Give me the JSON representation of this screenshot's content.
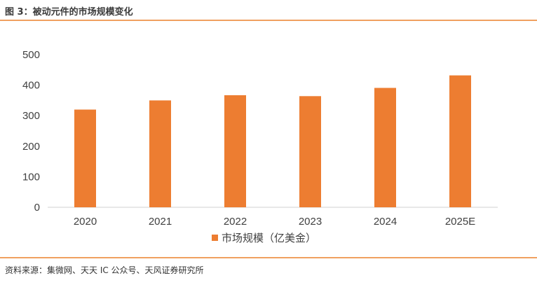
{
  "figure_title": "图 3：被动元件的市场规模变化",
  "source_note": "资料来源：集微网、天天 IC 公众号、天风证券研究所",
  "colors": {
    "accent": "#ED7D31",
    "rule": "#F0A060",
    "axis": "#D9D9D9",
    "text": "#404040"
  },
  "chart_data": {
    "type": "bar",
    "title": "",
    "xlabel": "",
    "ylabel": "",
    "categories": [
      "2020",
      "2021",
      "2022",
      "2023",
      "2024",
      "2025E"
    ],
    "series": [
      {
        "name": "市场规模（亿美金）",
        "values": [
          320,
          350,
          367,
          364,
          391,
          432
        ]
      }
    ],
    "ylim": [
      0,
      500
    ],
    "yticks": [
      "0",
      "100",
      "200",
      "300",
      "400",
      "500"
    ],
    "grid": false,
    "legend_position": "bottom-center"
  }
}
